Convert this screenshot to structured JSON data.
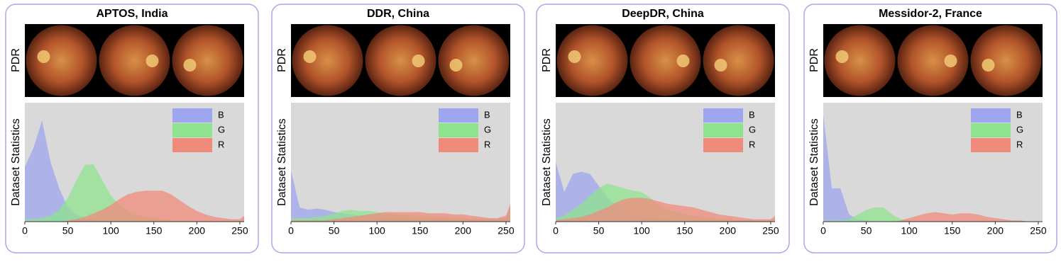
{
  "chart_data": [
    {
      "type": "area",
      "title": "APTOS, India",
      "image_label": "PDR",
      "ylabel": "Dataset Statistics",
      "x": [
        0,
        10,
        20,
        30,
        40,
        50,
        60,
        70,
        80,
        90,
        100,
        110,
        120,
        130,
        140,
        150,
        160,
        170,
        180,
        190,
        200,
        210,
        220,
        230,
        240,
        250,
        255
      ],
      "xlim": [
        0,
        255
      ],
      "xticks": [
        0,
        50,
        100,
        150,
        200,
        250
      ],
      "ylim": [
        0,
        100
      ],
      "series": [
        {
          "name": "B",
          "color": "#9da6ee",
          "values": [
            46,
            62,
            85,
            50,
            28,
            12,
            6,
            3,
            2,
            1,
            1,
            1,
            0,
            0,
            0,
            0,
            0,
            0,
            0,
            0,
            0,
            0,
            0,
            0,
            0,
            0,
            2
          ]
        },
        {
          "name": "G",
          "color": "#8fe38f",
          "values": [
            2,
            2,
            3,
            5,
            10,
            20,
            35,
            48,
            48,
            35,
            22,
            14,
            9,
            6,
            4,
            3,
            2,
            1,
            1,
            1,
            0,
            0,
            0,
            0,
            0,
            0,
            1
          ]
        },
        {
          "name": "R",
          "color": "#f08a7a",
          "values": [
            0,
            0,
            0,
            0,
            0,
            1,
            2,
            4,
            7,
            10,
            14,
            19,
            23,
            25,
            26,
            26,
            26,
            23,
            18,
            13,
            9,
            6,
            4,
            3,
            2,
            2,
            5
          ]
        }
      ]
    },
    {
      "type": "area",
      "title": "DDR, China",
      "image_label": "PDR",
      "ylabel": "Dataset Statistics",
      "x": [
        0,
        10,
        20,
        30,
        40,
        50,
        60,
        70,
        80,
        90,
        100,
        110,
        120,
        130,
        140,
        150,
        160,
        170,
        180,
        190,
        200,
        210,
        220,
        230,
        240,
        250,
        255
      ],
      "xlim": [
        0,
        255
      ],
      "xticks": [
        0,
        50,
        100,
        150,
        200,
        250
      ],
      "ylim": [
        0,
        100
      ],
      "series": [
        {
          "name": "B",
          "color": "#9da6ee",
          "values": [
            43,
            12,
            10,
            11,
            10,
            8,
            7,
            6,
            5,
            4,
            4,
            3,
            3,
            3,
            2,
            2,
            2,
            2,
            2,
            2,
            2,
            2,
            2,
            2,
            2,
            2,
            10
          ]
        },
        {
          "name": "G",
          "color": "#8fe38f",
          "values": [
            3,
            3,
            3,
            4,
            5,
            7,
            9,
            10,
            9,
            9,
            8,
            7,
            6,
            6,
            6,
            5,
            5,
            4,
            4,
            3,
            3,
            2,
            2,
            2,
            2,
            3,
            12
          ]
        },
        {
          "name": "R",
          "color": "#f08a7a",
          "values": [
            1,
            1,
            1,
            1,
            1,
            2,
            3,
            4,
            5,
            6,
            7,
            8,
            8,
            8,
            8,
            8,
            7,
            7,
            7,
            6,
            6,
            5,
            4,
            3,
            3,
            5,
            15
          ]
        }
      ]
    },
    {
      "type": "area",
      "title": "DeepDR, China",
      "image_label": "PDR",
      "ylabel": "Dataset Statistics",
      "x": [
        0,
        10,
        20,
        30,
        40,
        50,
        60,
        70,
        80,
        90,
        100,
        110,
        120,
        130,
        140,
        150,
        160,
        170,
        180,
        190,
        200,
        210,
        220,
        230,
        240,
        250,
        255
      ],
      "xlim": [
        0,
        255
      ],
      "xticks": [
        0,
        50,
        100,
        150,
        200,
        250
      ],
      "ylim": [
        0,
        100
      ],
      "series": [
        {
          "name": "B",
          "color": "#9da6ee",
          "values": [
            50,
            25,
            40,
            42,
            40,
            30,
            20,
            14,
            10,
            6,
            4,
            3,
            2,
            2,
            1,
            1,
            1,
            1,
            1,
            1,
            1,
            1,
            1,
            1,
            1,
            1,
            2
          ]
        },
        {
          "name": "G",
          "color": "#8fe38f",
          "values": [
            3,
            5,
            10,
            15,
            22,
            28,
            32,
            30,
            28,
            26,
            25,
            20,
            14,
            10,
            8,
            6,
            5,
            4,
            3,
            2,
            2,
            1,
            1,
            1,
            1,
            1,
            3
          ]
        },
        {
          "name": "R",
          "color": "#f08a7a",
          "values": [
            1,
            2,
            3,
            4,
            6,
            9,
            12,
            16,
            19,
            20,
            20,
            19,
            17,
            15,
            14,
            13,
            12,
            10,
            8,
            6,
            5,
            4,
            3,
            2,
            2,
            2,
            5
          ]
        }
      ]
    },
    {
      "type": "area",
      "title": "Messidor-2, France",
      "image_label": "PDR",
      "ylabel": "Dataset Statistics",
      "x": [
        0,
        10,
        20,
        30,
        40,
        50,
        60,
        70,
        80,
        90,
        100,
        110,
        120,
        130,
        140,
        150,
        160,
        170,
        180,
        190,
        200,
        210,
        220,
        230,
        240,
        250,
        255
      ],
      "xlim": [
        0,
        255
      ],
      "xticks": [
        0,
        50,
        100,
        150,
        200,
        250
      ],
      "ylim": [
        0,
        100
      ],
      "series": [
        {
          "name": "B",
          "color": "#9da6ee",
          "values": [
            90,
            28,
            28,
            6,
            2,
            1,
            0,
            0,
            0,
            0,
            0,
            0,
            0,
            0,
            0,
            0,
            0,
            0,
            0,
            0,
            0,
            0,
            0,
            0,
            0,
            0,
            0
          ]
        },
        {
          "name": "G",
          "color": "#8fe38f",
          "values": [
            1,
            1,
            1,
            2,
            6,
            10,
            12,
            12,
            6,
            2,
            1,
            0,
            0,
            0,
            0,
            0,
            0,
            0,
            0,
            0,
            0,
            0,
            0,
            0,
            0,
            0,
            0
          ]
        },
        {
          "name": "R",
          "color": "#f08a7a",
          "values": [
            0,
            0,
            0,
            0,
            0,
            0,
            0,
            0,
            0,
            1,
            3,
            5,
            7,
            8,
            7,
            6,
            7,
            7,
            6,
            4,
            3,
            2,
            1,
            1,
            0,
            0,
            0
          ]
        }
      ]
    }
  ]
}
